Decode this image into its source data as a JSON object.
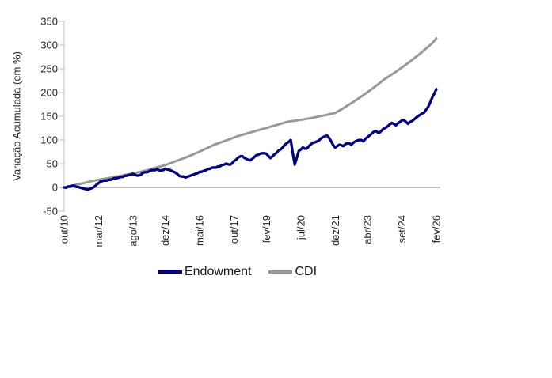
{
  "chart_data": {
    "type": "line",
    "title": "",
    "ylabel": "Variação Acumulada (em %)",
    "ylim": [
      -50,
      350
    ],
    "yticks": [
      350,
      300,
      250,
      200,
      150,
      100,
      50,
      0,
      -50
    ],
    "grid": "zero-line-only",
    "legend_position": "bottom",
    "x_total_months": 184,
    "x_step_months": 2,
    "xticks": [
      {
        "month": 0,
        "label": "out/10"
      },
      {
        "month": 17,
        "label": "mar/12"
      },
      {
        "month": 34,
        "label": "ago/13"
      },
      {
        "month": 50,
        "label": "dez/14"
      },
      {
        "month": 67,
        "label": "mai/16"
      },
      {
        "month": 84,
        "label": "out/17"
      },
      {
        "month": 100,
        "label": "fev/19"
      },
      {
        "month": 117,
        "label": "jul/20"
      },
      {
        "month": 134,
        "label": "dez/21"
      },
      {
        "month": 150,
        "label": "abr/23"
      },
      {
        "month": 167,
        "label": "set/24"
      },
      {
        "month": 184,
        "label": "fev/26"
      }
    ],
    "series": [
      {
        "name": "CDI",
        "color": "#999999",
        "width": 3,
        "jitter": 0,
        "values": [
          0,
          1.8,
          3.7,
          5.6,
          7.5,
          9.5,
          11.5,
          13.6,
          15.1,
          16.7,
          18.3,
          19.9,
          21.5,
          23.1,
          24.7,
          26.3,
          28.0,
          29.6,
          31.3,
          33.0,
          35.3,
          37.7,
          40.0,
          42.3,
          44.7,
          47.0,
          50.1,
          53.3,
          56.6,
          59.8,
          63.0,
          66.3,
          70.0,
          73.7,
          77.6,
          81.5,
          85.5,
          89.6,
          92.6,
          95.7,
          98.8,
          102.0,
          105.1,
          108.4,
          110.8,
          113.2,
          115.6,
          118.0,
          120.5,
          123.0,
          125.4,
          127.8,
          130.3,
          132.8,
          135.4,
          138.0,
          139.3,
          140.6,
          141.9,
          143.2,
          144.6,
          146.0,
          147.8,
          149.6,
          151.4,
          153.2,
          155.1,
          157.0,
          161.9,
          167.0,
          172.3,
          177.7,
          183.2,
          189.0,
          194.9,
          200.9,
          207.1,
          213.5,
          220.2,
          227.0,
          232.5,
          238.1,
          243.9,
          249.8,
          255.8,
          262.0,
          268.6,
          275.3,
          282.2,
          289.3,
          296.6,
          304.0,
          314.0
        ]
      },
      {
        "name": "Endowment",
        "color": "#000080",
        "width": 3.3,
        "jitter": 1.5,
        "values": [
          0,
          2,
          3.5,
          1,
          -0.5,
          -3,
          -4,
          -1,
          6,
          12,
          14.5,
          16,
          18,
          19.5,
          22,
          24.5,
          26,
          28.5,
          25,
          27,
          32,
          34,
          36.5,
          38.5,
          36,
          39.5,
          37,
          33,
          28,
          23,
          21,
          24,
          27,
          30,
          33,
          36,
          39,
          42,
          44,
          47,
          50,
          48,
          56,
          63,
          66,
          60,
          57,
          64,
          69,
          72,
          71,
          62,
          70,
          78,
          84,
          93,
          100,
          48,
          77,
          84,
          82,
          91,
          95,
          99,
          106,
          109,
          97,
          84,
          90,
          87,
          93,
          90,
          97,
          100,
          97,
          106,
          113,
          119,
          116,
          124,
          129,
          136,
          131,
          138,
          142,
          134,
          140,
          147,
          153,
          158,
          170,
          190,
          207
        ]
      }
    ],
    "legend": [
      "Endowment",
      "CDI"
    ]
  },
  "colors": {
    "background": "#ffffff",
    "axis": "#c0c0c0",
    "zero_line": "#9c9c9c",
    "tick_text": "#262626"
  }
}
